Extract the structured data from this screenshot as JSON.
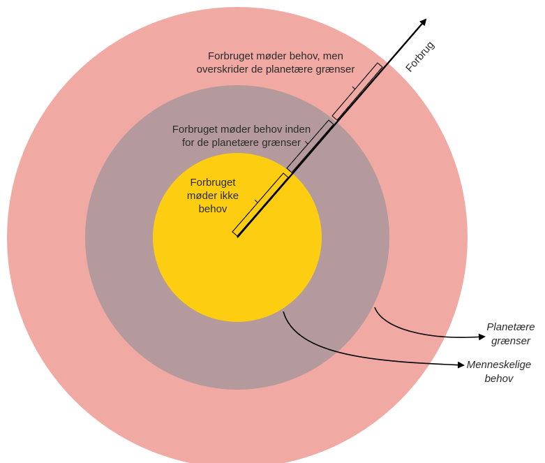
{
  "colors": {
    "outer_ring": "#f1a9a3",
    "middle_ring": "#b49a9c",
    "inner_circle": "#fccd10",
    "ink": "#000000"
  },
  "axis": {
    "label": "Forbrug"
  },
  "zones": {
    "inner": {
      "line1": "Forbruget",
      "line2": "møder ikke",
      "line3": "behov"
    },
    "middle": {
      "line1": "Forbruget møder behov inden",
      "line2": "for de planetære grænser"
    },
    "outer": {
      "line1": "Forbruget møder behov, men",
      "line2": "overskrider de planetære grænser"
    }
  },
  "legend": {
    "planetary": {
      "line1": "Planetære",
      "line2": "grænser"
    },
    "human": {
      "line1": "Menneskelige",
      "line2": "behov"
    }
  }
}
